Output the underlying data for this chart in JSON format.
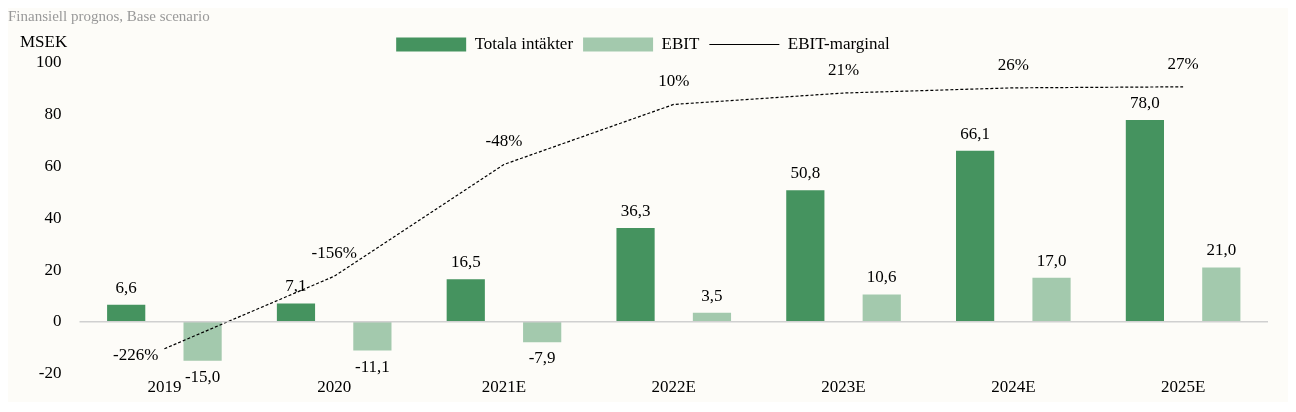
{
  "chart_data": {
    "type": "bar",
    "title": "Finansiell prognos, Base scenario",
    "ylabel": "MSEK",
    "categories": [
      "2019",
      "2020",
      "2021E",
      "2022E",
      "2023E",
      "2024E",
      "2025E"
    ],
    "series": [
      {
        "name": "Totala intäkter",
        "color": "#45935f",
        "values": [
          6.6,
          7.1,
          16.5,
          36.3,
          50.8,
          66.1,
          78.0
        ],
        "value_labels": [
          "6,6",
          "7,1",
          "16,5",
          "36,3",
          "50,8",
          "66,1",
          "78,0"
        ]
      },
      {
        "name": "EBIT",
        "color": "#a3c9ad",
        "values": [
          -15.0,
          -11.1,
          -7.9,
          3.5,
          10.6,
          17.0,
          21.0
        ],
        "value_labels": [
          "-15,0",
          "-11,1",
          "-7,9",
          "3,5",
          "10,6",
          "17,0",
          "21,0"
        ]
      },
      {
        "name": "EBIT-marginal",
        "type": "line",
        "axis": "y2",
        "color": "#000000",
        "line_style": "dashed",
        "marker": "none",
        "values": [
          -226,
          -156,
          -48,
          10,
          21,
          26,
          27
        ],
        "value_labels": [
          "-226%",
          "-156%",
          "-48%",
          "10%",
          "21%",
          "26%",
          "27%"
        ]
      }
    ],
    "ylim": [
      -20,
      100
    ],
    "yticks": [
      -20,
      0,
      20,
      40,
      60,
      80,
      100
    ],
    "tick_labels": "xy",
    "legend": "top"
  }
}
